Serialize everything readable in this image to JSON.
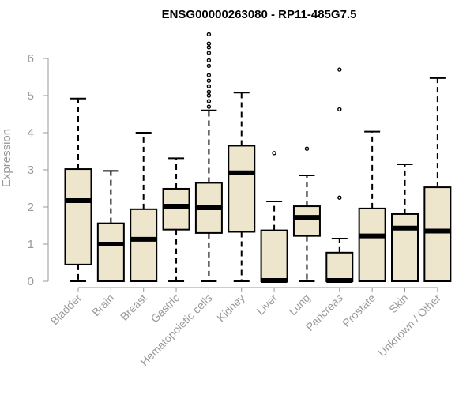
{
  "chart_data": {
    "type": "boxplot",
    "title": "ENSG00000263080 - RP11-485G7.5",
    "ylabel": "Expression",
    "xlabel": "",
    "ylim": [
      0,
      6.6
    ],
    "yticks": [
      "0",
      "1",
      "2",
      "3",
      "4",
      "5",
      "6"
    ],
    "grid": false,
    "colors": {
      "box_fill": "#ede6cc",
      "stroke": "#000000",
      "axis": "#999999"
    },
    "categories": [
      {
        "name": "Bladder",
        "min": 0,
        "q1": 0.45,
        "median": 2.17,
        "q3": 3.02,
        "max": 4.92,
        "outliers": []
      },
      {
        "name": "Brain",
        "min": 0,
        "q1": 0,
        "median": 1.0,
        "q3": 1.56,
        "max": 2.97,
        "outliers": []
      },
      {
        "name": "Breast",
        "min": 0,
        "q1": 0,
        "median": 1.13,
        "q3": 1.94,
        "max": 4.0,
        "outliers": []
      },
      {
        "name": "Gastric",
        "min": 0,
        "q1": 1.39,
        "median": 2.02,
        "q3": 2.49,
        "max": 3.31,
        "outliers": []
      },
      {
        "name": "Hematopoietic cells",
        "min": 0,
        "q1": 1.3,
        "median": 1.98,
        "q3": 2.65,
        "max": 4.6,
        "outliers": [
          4.7,
          4.85,
          5.0,
          5.1,
          5.25,
          5.4,
          5.55,
          5.8,
          5.95,
          6.15,
          6.3,
          6.4,
          6.65
        ]
      },
      {
        "name": "Kidney",
        "min": 0,
        "q1": 1.33,
        "median": 2.92,
        "q3": 3.65,
        "max": 5.08,
        "outliers": []
      },
      {
        "name": "Liver",
        "min": 0,
        "q1": 0,
        "median": 0.02,
        "q3": 1.37,
        "max": 2.15,
        "outliers": [
          3.45
        ]
      },
      {
        "name": "Lung",
        "min": 0,
        "q1": 1.22,
        "median": 1.72,
        "q3": 2.02,
        "max": 2.85,
        "outliers": [
          3.57
        ]
      },
      {
        "name": "Pancreas",
        "min": 0,
        "q1": 0,
        "median": 0.02,
        "q3": 0.77,
        "max": 1.15,
        "outliers": [
          2.25,
          4.63,
          5.7
        ]
      },
      {
        "name": "Prostate",
        "min": 0,
        "q1": 0,
        "median": 1.22,
        "q3": 1.96,
        "max": 4.03,
        "outliers": []
      },
      {
        "name": "Skin",
        "min": 0,
        "q1": 0,
        "median": 1.43,
        "q3": 1.81,
        "max": 3.15,
        "outliers": []
      },
      {
        "name": "Unknown / Other",
        "min": 0,
        "q1": 0,
        "median": 1.35,
        "q3": 2.53,
        "max": 5.47,
        "outliers": []
      }
    ]
  }
}
